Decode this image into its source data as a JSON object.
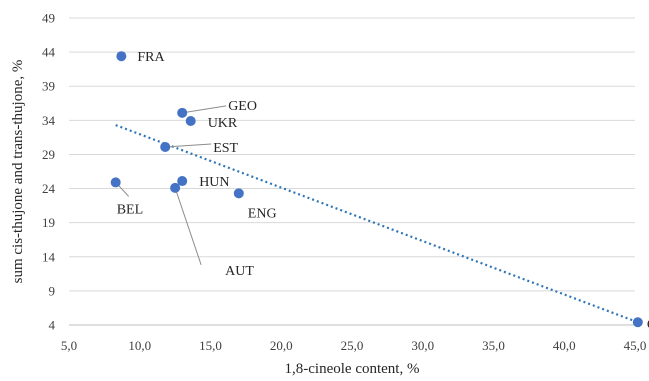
{
  "chart_data": {
    "type": "scatter",
    "xlabel": "1,8-cineole content, %",
    "ylabel": "sum cis-thujone and trans-thujone, %",
    "xlim": [
      5,
      45
    ],
    "ylim": [
      4,
      49
    ],
    "x_ticks": [
      5,
      10,
      15,
      20,
      25,
      30,
      35,
      40,
      45
    ],
    "x_tick_labels": [
      "5,0",
      "10,0",
      "15,0",
      "20,0",
      "25,0",
      "30,0",
      "35,0",
      "40,0",
      "45,0"
    ],
    "y_ticks": [
      4,
      9,
      14,
      19,
      24,
      29,
      34,
      39,
      44,
      49
    ],
    "y_tick_labels": [
      "4",
      "9",
      "14",
      "19",
      "24",
      "29",
      "34",
      "39",
      "44",
      "49"
    ],
    "grid": "horizontal",
    "points": [
      {
        "label": "FRA",
        "x": 8.7,
        "y": 43.4
      },
      {
        "label": "GEO",
        "x": 13.0,
        "y": 35.1
      },
      {
        "label": "UKR",
        "x": 13.6,
        "y": 33.9
      },
      {
        "label": "EST",
        "x": 11.8,
        "y": 30.1
      },
      {
        "label": "HUN",
        "x": 13.0,
        "y": 25.1
      },
      {
        "label": "BEL",
        "x": 8.3,
        "y": 24.9
      },
      {
        "label": "AUT",
        "x": 12.5,
        "y": 24.1
      },
      {
        "label": "ENG",
        "x": 17.0,
        "y": 23.3
      },
      {
        "label": "GRC",
        "x": 45.2,
        "y": 4.4
      }
    ],
    "trendline": {
      "type": "linear",
      "style": "dotted",
      "x_start": 8.3,
      "y_start": 33.3,
      "x_end": 45.2,
      "y_end": 4.4
    },
    "colors": {
      "marker": "#4472c4",
      "trendline": "#2e75b6"
    }
  }
}
